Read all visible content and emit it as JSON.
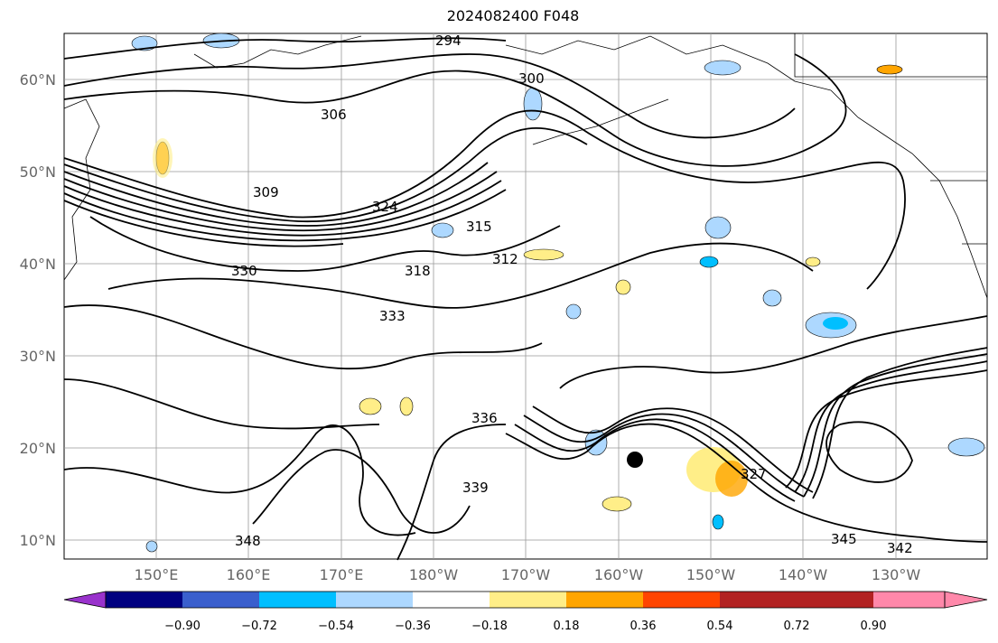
{
  "title": "2024082400 F048",
  "map": {
    "lat_labels": [
      "60°N",
      "50°N",
      "40°N",
      "30°N",
      "20°N",
      "10°N"
    ],
    "lon_labels": [
      "150°E",
      "160°E",
      "170°E",
      "180°W",
      "170°W",
      "160°W",
      "150°W",
      "140°W",
      "130°W"
    ],
    "contour_labels": [
      "294",
      "300",
      "306",
      "309",
      "312",
      "315",
      "318",
      "324",
      "327",
      "330",
      "333",
      "336",
      "339",
      "342",
      "345",
      "348"
    ],
    "storm_marker": "black-dot"
  },
  "colorbar": {
    "ticks": [
      "−0.90",
      "−0.72",
      "−0.54",
      "−0.36",
      "−0.18",
      "0.18",
      "0.36",
      "0.54",
      "0.72",
      "0.90"
    ],
    "colors": [
      "#9932CC",
      "#000080",
      "#3A5FCD",
      "#00BFFF",
      "#ADD8FF",
      "#FFFFFF",
      "#FFEE88",
      "#FFA500",
      "#FF4500",
      "#B22222",
      "#FF88AA"
    ]
  }
}
